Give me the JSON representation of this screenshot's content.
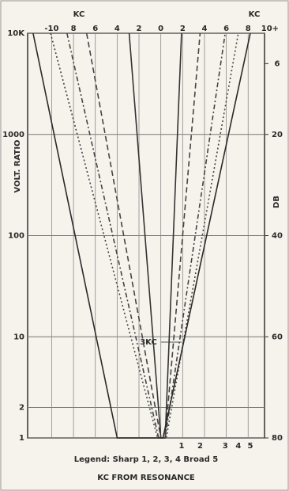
{
  "chart_data": {
    "type": "line",
    "x_top_label": "KC",
    "x_top_label_right": "KC",
    "ylabel": "VOLT. RATIO",
    "y2label": "DB",
    "xlabel": "KC FROM RESONANCE",
    "legend_text": "Legend: Sharp 1, 2, 3, 4 Broad 5",
    "annotation": "3KC",
    "log_y": true,
    "grid": true,
    "xlim": [
      -12.2,
      9.5
    ],
    "xticks": [
      -10,
      {
        "value": -8,
        "label": "8"
      },
      {
        "value": -6,
        "label": "6"
      },
      {
        "value": -4,
        "label": "4"
      },
      {
        "value": -2,
        "label": "2"
      },
      0,
      2,
      4,
      6,
      8,
      {
        "value": 10,
        "label": "10+"
      }
    ],
    "ylim": [
      1,
      10000
    ],
    "yticks": [
      1,
      2,
      10,
      100,
      1000,
      {
        "value": 10000,
        "label": "10K"
      }
    ],
    "y2lim": [
      0,
      80
    ],
    "y2ticks": [
      6,
      20,
      40,
      60,
      80
    ],
    "series": [
      {
        "name": "1",
        "color": "#333333",
        "dash": "none",
        "x": [
          -2.9,
          0,
          0.4,
          1.9
        ],
        "values": [
          10000,
          1,
          1,
          10000
        ]
      },
      {
        "name": "2",
        "color": "#444444",
        "dash": "7 4",
        "x": [
          -6.8,
          0,
          0.4,
          3.6
        ],
        "values": [
          10000,
          1,
          1,
          10000
        ]
      },
      {
        "name": "3",
        "color": "#444444",
        "dash": "6 3 2 3",
        "x": [
          -8.6,
          -0.2,
          0.4,
          5.9
        ],
        "values": [
          10000,
          1,
          1,
          10000
        ]
      },
      {
        "name": "4",
        "color": "#444444",
        "dash": "2 3",
        "x": [
          -10.1,
          -0.3,
          0.5,
          7.1
        ],
        "values": [
          10000,
          1,
          1,
          10000
        ]
      },
      {
        "name": "5",
        "color": "#2a2a2a",
        "dash": "none",
        "x": [
          -11.7,
          -4,
          0.2,
          8.2
        ],
        "values": [
          10000,
          1,
          1,
          10000
        ]
      }
    ]
  }
}
